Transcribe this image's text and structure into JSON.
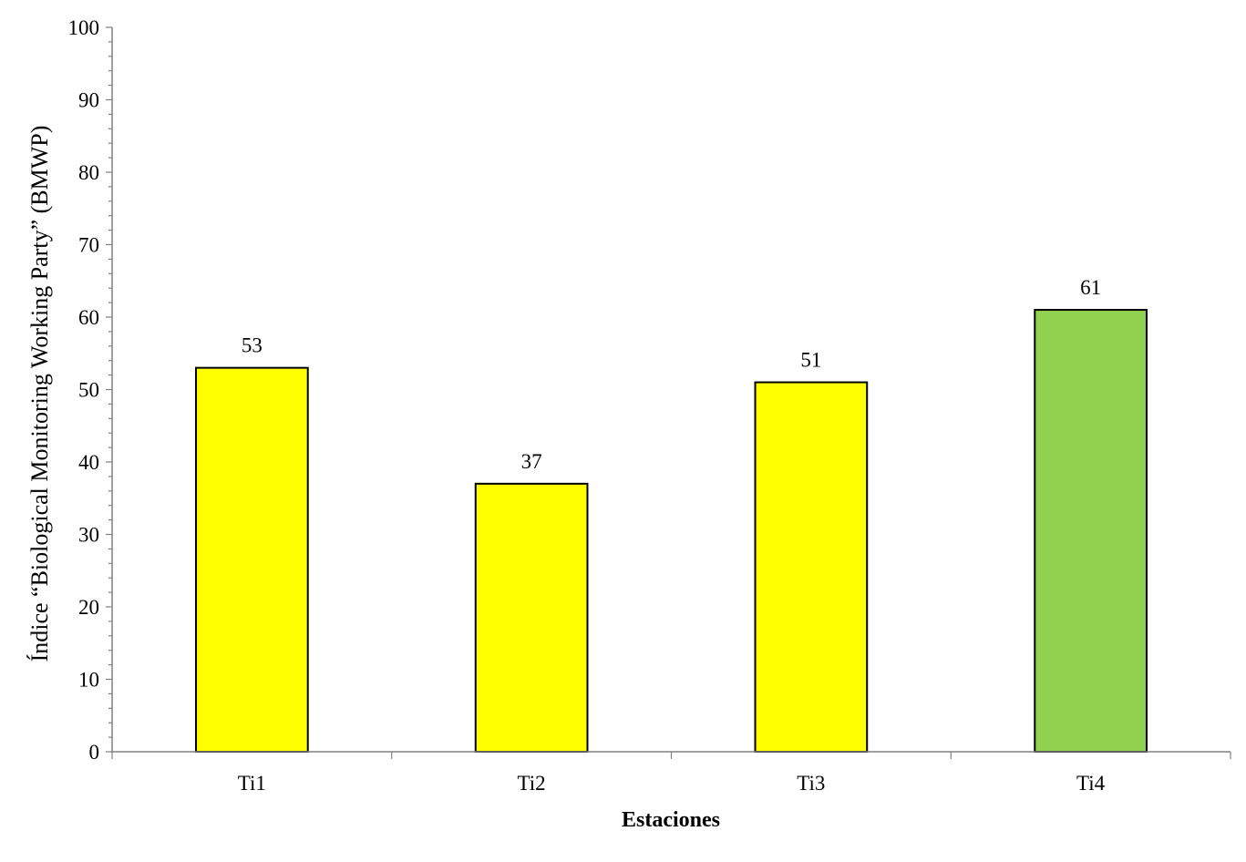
{
  "chart_data": {
    "type": "bar",
    "title": "",
    "xlabel": "Estaciones",
    "ylabel": "Índice “Biological Monitoring Working Party” (BMWP)",
    "categories": [
      "Ti1",
      "Ti2",
      "Ti3",
      "Ti4"
    ],
    "values": [
      53,
      37,
      51,
      61
    ],
    "bar_colors": [
      "#FFFF00",
      "#FFFF00",
      "#FFFF00",
      "#92D050"
    ],
    "data_labels": [
      "53",
      "37",
      "51",
      "61"
    ],
    "ylim": [
      0,
      100
    ],
    "y_major_ticks": [
      0,
      10,
      20,
      30,
      40,
      50,
      60,
      70,
      80,
      90,
      100
    ],
    "y_minor_step": 2,
    "grid": false,
    "legend": "none"
  }
}
